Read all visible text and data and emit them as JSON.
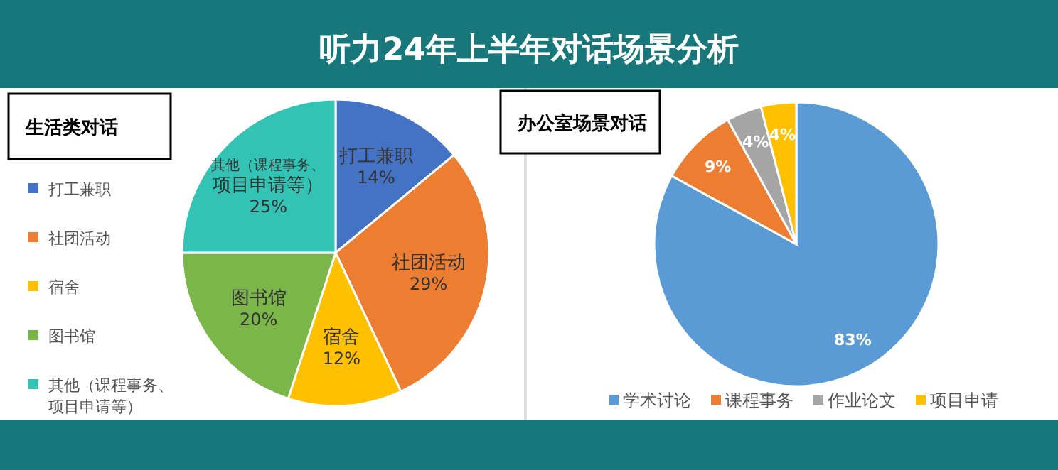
{
  "chart_data": [
    {
      "type": "pie",
      "title": "听力24年上半年对话场景分析",
      "subtitle": "生活类对话",
      "categories": [
        "打工兼职",
        "社团活动",
        "宿舍",
        "图书馆",
        "其他（课程事务、项目申请等）"
      ],
      "values": [
        14,
        29,
        12,
        20,
        25
      ],
      "colors": [
        "#4472c4",
        "#ed7d31",
        "#ffc000",
        "#7ab648",
        "#33c3b5"
      ],
      "value_labels": [
        "14%",
        "29%",
        "12%",
        "20%",
        "25%"
      ],
      "legend": "left"
    },
    {
      "type": "pie",
      "title": "办公室场景对话",
      "categories": [
        "学术讨论",
        "课程事务",
        "作业论文",
        "项目申请"
      ],
      "values": [
        83,
        9,
        4,
        4
      ],
      "colors": [
        "#5b9bd5",
        "#ed7d31",
        "#a5a5a5",
        "#ffc000"
      ],
      "value_labels": [
        "83%",
        "9%",
        "4%",
        "4%"
      ],
      "legend": "bottom"
    }
  ]
}
